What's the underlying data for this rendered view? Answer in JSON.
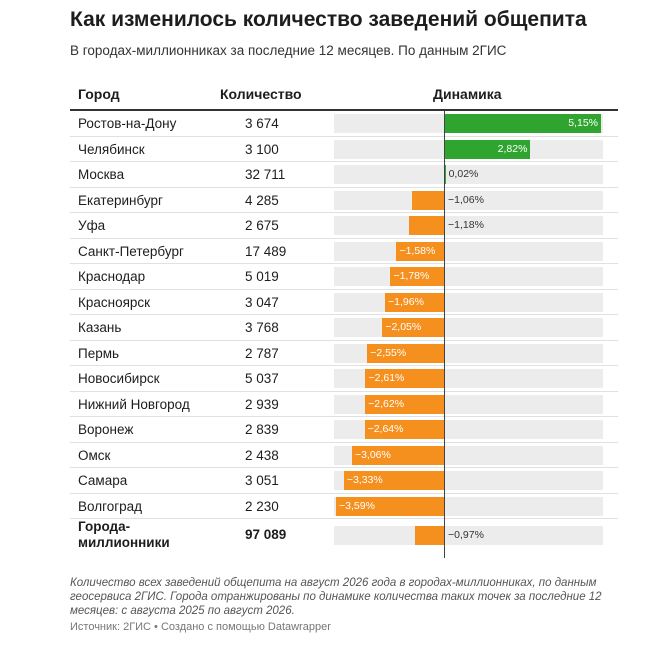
{
  "title": "Как изменилось количество заведений общепита",
  "subtitle": "В городах-миллионниках за последние 12 месяцев. По данным 2ГИС",
  "table": {
    "headers": [
      "Город",
      "Количество",
      "Динамика"
    ],
    "rows": [
      {
        "city": "Ростов-на-Дону",
        "count": "3 674",
        "change": 5.15,
        "label": "5,15%"
      },
      {
        "city": "Челябинск",
        "count": "3 100",
        "change": 2.82,
        "label": "2,82%"
      },
      {
        "city": "Москва",
        "count": "32 711",
        "change": 0.02,
        "label": "0,02%"
      },
      {
        "city": "Екатеринбург",
        "count": "4 285",
        "change": -1.06,
        "label": "−1,06%"
      },
      {
        "city": "Уфа",
        "count": "2 675",
        "change": -1.18,
        "label": "−1,18%"
      },
      {
        "city": "Санкт-Петербург",
        "count": "17 489",
        "change": -1.58,
        "label": "−1,58%"
      },
      {
        "city": "Краснодар",
        "count": "5 019",
        "change": -1.78,
        "label": "−1,78%"
      },
      {
        "city": "Красноярск",
        "count": "3 047",
        "change": -1.96,
        "label": "−1,96%"
      },
      {
        "city": "Казань",
        "count": "3 768",
        "change": -2.05,
        "label": "−2,05%"
      },
      {
        "city": "Пермь",
        "count": "2 787",
        "change": -2.55,
        "label": "−2,55%"
      },
      {
        "city": "Новосибирск",
        "count": "5 037",
        "change": -2.61,
        "label": "−2,61%"
      },
      {
        "city": "Нижний Новгород",
        "count": "2 939",
        "change": -2.62,
        "label": "−2,62%"
      },
      {
        "city": "Воронеж",
        "count": "2 839",
        "change": -2.64,
        "label": "−2,64%"
      },
      {
        "city": "Омск",
        "count": "2 438",
        "change": -3.06,
        "label": "−3,06%"
      },
      {
        "city": "Самара",
        "count": "3 051",
        "change": -3.33,
        "label": "−3,33%"
      },
      {
        "city": "Волгоград",
        "count": "2 230",
        "change": -3.59,
        "label": "−3,59%"
      }
    ],
    "total": {
      "city": "Города-миллионники",
      "count": "97 089",
      "change": -0.97,
      "label": "−0,97%"
    }
  },
  "notes": "Количество всех заведений общепита на август 2026 года в городах-миллионниках, по данным геосервиса 2ГИС. Города отранжированы по динамике количества таких точек за последние 12 месяцев: с августа 2025 по август 2026.",
  "source": "Источник: 2ГИС • Создано с помощью Datawrapper",
  "colors": {
    "positive": "#2fa52f",
    "negative": "#f5901e",
    "track": "#ececec"
  },
  "chart_data": {
    "type": "table",
    "title": "Как изменилось количество заведений общепита",
    "subtitle": "В городах-миллионниках за последние 12 месяцев. По данным 2ГИС",
    "columns": [
      "Город",
      "Количество",
      "Динамика"
    ],
    "categories": [
      "Ростов-на-Дону",
      "Челябинск",
      "Москва",
      "Екатеринбург",
      "Уфа",
      "Санкт-Петербург",
      "Краснодар",
      "Красноярск",
      "Казань",
      "Пермь",
      "Новосибирск",
      "Нижний Новгород",
      "Воронеж",
      "Омск",
      "Самара",
      "Волгоград",
      "Города-миллионники"
    ],
    "counts": [
      3674,
      3100,
      32711,
      4285,
      2675,
      17489,
      5019,
      3047,
      3768,
      2787,
      5037,
      2939,
      2839,
      2438,
      3051,
      2230,
      97089
    ],
    "values": [
      5.15,
      2.82,
      0.02,
      -1.06,
      -1.18,
      -1.58,
      -1.78,
      -1.96,
      -2.05,
      -2.55,
      -2.61,
      -2.62,
      -2.64,
      -3.06,
      -3.33,
      -3.59,
      -0.97
    ],
    "xlim": [
      -3.59,
      5.15
    ],
    "unit": "%"
  }
}
